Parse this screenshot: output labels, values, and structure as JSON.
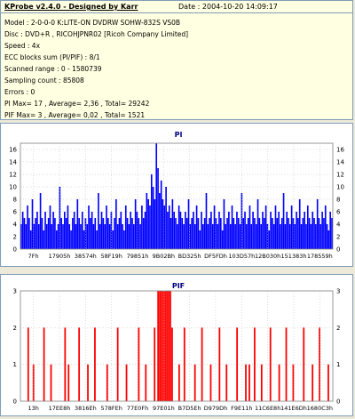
{
  "header": {
    "title": "KProbe v2.4.0 - Designed by Karr",
    "date": "Date : 2004-10-20 14:09:17"
  },
  "info_lines": [
    "Model : 2-0-0-0 K:LITE-ON DVDRW SOHW-832S  VS0B",
    "Disc : DVD+R , RICOHJPNR02 [Ricoh Company Limited]",
    "Speed : 4x",
    "ECC blocks sum (PI/PIF) : 8/1",
    "Scanned range : 0 - 1580739",
    "Sampling count : 85808",
    "Errors : 0",
    "PI Max= 17 , Average= 2,36 , Total= 29242",
    "PIF Max= 3 , Average= 0,02 , Total= 1521"
  ],
  "colors": {
    "pi_bar": "#0000ff",
    "pif_bar": "#ff0000",
    "grid": "#bbbbbb",
    "panel_bg": "#ffffff",
    "info_bg": "#ffffe1"
  },
  "chart_data": [
    {
      "type": "bar",
      "title": "PI",
      "y_ticks": [
        "0",
        "2",
        "4",
        "6",
        "8",
        "10",
        "12",
        "14",
        "16"
      ],
      "ylim": [
        0,
        17
      ],
      "x_tick_labels": [
        "7Fh",
        "17905h",
        "38574h",
        "58F19h",
        "79851h",
        "9B02Bh",
        "BD325h",
        "DF5FDh",
        "103D57h",
        "12B030h",
        "151383h",
        "178559h"
      ],
      "values": [
        4,
        6,
        5,
        4,
        7,
        5,
        3,
        8,
        4,
        5,
        6,
        4,
        9,
        5,
        3,
        6,
        4,
        5,
        7,
        4,
        6,
        5,
        3,
        4,
        10,
        5,
        4,
        6,
        5,
        7,
        4,
        3,
        5,
        6,
        4,
        8,
        5,
        4,
        6,
        3,
        5,
        4,
        7,
        5,
        6,
        4,
        5,
        3,
        9,
        4,
        6,
        5,
        4,
        7,
        5,
        4,
        6,
        3,
        5,
        8,
        4,
        5,
        6,
        4,
        3,
        7,
        5,
        4,
        6,
        5,
        4,
        8,
        6,
        5,
        4,
        7,
        5,
        6,
        9,
        8,
        7,
        12,
        10,
        8,
        17,
        13,
        9,
        11,
        8,
        7,
        10,
        6,
        7,
        5,
        8,
        6,
        5,
        4,
        7,
        6,
        5,
        4,
        6,
        5,
        8,
        4,
        5,
        6,
        4,
        7,
        5,
        3,
        6,
        4,
        5,
        9,
        4,
        5,
        6,
        4,
        7,
        5,
        4,
        6,
        5,
        3,
        8,
        4,
        5,
        6,
        4,
        7,
        5,
        4,
        6,
        5,
        4,
        9,
        5,
        6,
        4,
        5,
        7,
        4,
        6,
        5,
        4,
        8,
        5,
        4,
        6,
        5,
        7,
        4,
        3,
        6,
        5,
        4,
        7,
        5,
        6,
        4,
        5,
        9,
        4,
        6,
        5,
        4,
        7,
        5,
        4,
        6,
        5,
        8,
        4,
        5,
        6,
        4,
        7,
        5,
        4,
        6,
        5,
        4,
        8,
        5,
        4,
        6,
        5,
        7,
        4,
        3,
        6,
        5
      ]
    },
    {
      "type": "bar",
      "title": "PIF",
      "y_ticks": [
        "0",
        "1",
        "2",
        "3"
      ],
      "ylim": [
        0,
        3
      ],
      "x_tick_labels": [
        "13h",
        "17EE8h",
        "3816Eh",
        "578FEh",
        "77E0Fh",
        "97E01h",
        "B7D5Eh",
        "D979Dh",
        "F9E11h",
        "11C6E8h",
        "141E6Dh",
        "1680C3h"
      ],
      "values": [
        0,
        0,
        0,
        0,
        2,
        0,
        0,
        1,
        0,
        0,
        0,
        0,
        0,
        2,
        0,
        0,
        0,
        1,
        0,
        0,
        0,
        0,
        0,
        0,
        0,
        2,
        0,
        1,
        0,
        0,
        0,
        0,
        0,
        2,
        0,
        0,
        0,
        0,
        1,
        0,
        0,
        0,
        2,
        0,
        0,
        0,
        0,
        0,
        0,
        1,
        0,
        0,
        0,
        0,
        0,
        2,
        0,
        0,
        0,
        0,
        1,
        0,
        0,
        0,
        0,
        0,
        0,
        2,
        0,
        0,
        0,
        1,
        0,
        0,
        0,
        0,
        2,
        0,
        3,
        3,
        3,
        3,
        3,
        3,
        3,
        3,
        2,
        0,
        0,
        0,
        1,
        0,
        0,
        2,
        0,
        0,
        0,
        0,
        0,
        1,
        0,
        0,
        0,
        2,
        0,
        0,
        0,
        0,
        1,
        0,
        0,
        0,
        0,
        2,
        0,
        0,
        0,
        1,
        0,
        0,
        0,
        0,
        0,
        2,
        0,
        0,
        0,
        0,
        1,
        0,
        1,
        0,
        0,
        2,
        0,
        0,
        0,
        1,
        0,
        0,
        0,
        0,
        2,
        0,
        0,
        0,
        0,
        1,
        0,
        0,
        0,
        2,
        0,
        0,
        0,
        1,
        0,
        0,
        0,
        0,
        0,
        2,
        0,
        0,
        0,
        0,
        1,
        0,
        0,
        0,
        2,
        0,
        0,
        0,
        0,
        1,
        0,
        0
      ]
    }
  ]
}
